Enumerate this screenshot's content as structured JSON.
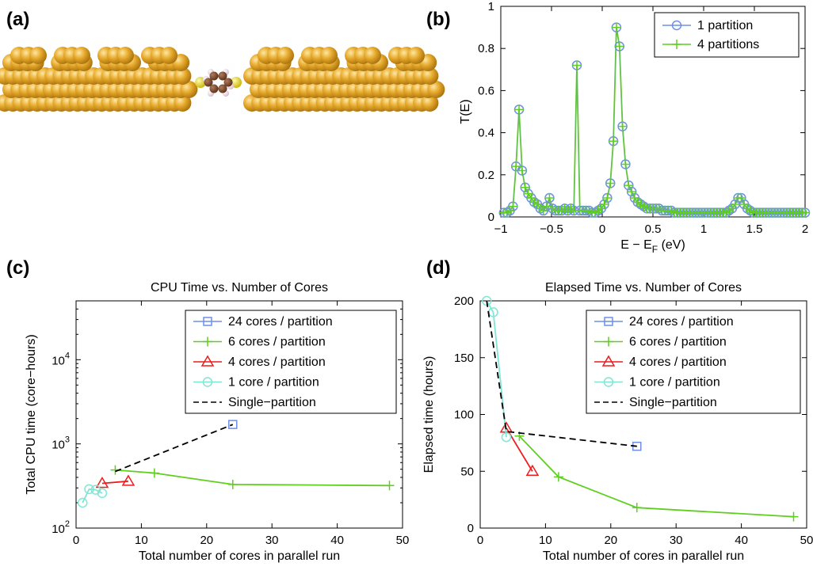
{
  "panel_labels": [
    "(a)",
    "(b)",
    "(c)",
    "(d)"
  ],
  "colors": {
    "blue": "#6e8fe6",
    "green": "#5fcf1f",
    "red": "#ee1c1c",
    "cyan": "#7fe6d5",
    "black": "#000000",
    "gold": "#e3a21c",
    "sulfur": "#f2de16",
    "carbon": "#7a4a2c",
    "hydrogen": "#f3d6e6"
  },
  "chart_data": [
    {
      "id": "b",
      "type": "line",
      "title": "",
      "xlabel": "E − E",
      "xlabel_sub": "F",
      "xlabel_suffix": " (eV)",
      "ylabel": "T(E)",
      "xlim": [
        -1,
        2
      ],
      "ylim": [
        0,
        1
      ],
      "xticks": [
        -1,
        -0.5,
        0,
        0.5,
        1,
        1.5,
        2
      ],
      "xtick_labels": [
        "−1",
        "−0.5",
        "0",
        "0.5",
        "1",
        "1.5",
        "2"
      ],
      "yticks": [
        0,
        0.2,
        0.4,
        0.6,
        0.8,
        1
      ],
      "ytick_labels": [
        "0",
        "0.2",
        "0.4",
        "0.6",
        "0.8",
        "1"
      ],
      "legend_position": "top-right",
      "series": [
        {
          "name": "1 partition",
          "color": "blue",
          "marker": "circle",
          "line": true
        },
        {
          "name": "4 partitions",
          "color": "green",
          "marker": "plus",
          "line": true
        }
      ],
      "x": [
        -0.97,
        -0.94,
        -0.91,
        -0.88,
        -0.85,
        -0.82,
        -0.79,
        -0.76,
        -0.73,
        -0.7,
        -0.67,
        -0.64,
        -0.61,
        -0.58,
        -0.55,
        -0.52,
        -0.49,
        -0.46,
        -0.43,
        -0.4,
        -0.37,
        -0.34,
        -0.31,
        -0.28,
        -0.25,
        -0.22,
        -0.19,
        -0.16,
        -0.13,
        -0.1,
        -0.07,
        -0.04,
        -0.01,
        0.02,
        0.05,
        0.08,
        0.11,
        0.14,
        0.17,
        0.2,
        0.23,
        0.26,
        0.29,
        0.32,
        0.35,
        0.38,
        0.41,
        0.44,
        0.47,
        0.5,
        0.53,
        0.56,
        0.59,
        0.62,
        0.65,
        0.68,
        0.71,
        0.74,
        0.77,
        0.8,
        0.83,
        0.86,
        0.89,
        0.92,
        0.95,
        0.98,
        1.01,
        1.04,
        1.07,
        1.1,
        1.13,
        1.16,
        1.19,
        1.22,
        1.25,
        1.28,
        1.31,
        1.34,
        1.37,
        1.4,
        1.43,
        1.46,
        1.49,
        1.52,
        1.55,
        1.58,
        1.61,
        1.64,
        1.67,
        1.7,
        1.73,
        1.76,
        1.79,
        1.82,
        1.85,
        1.88,
        1.91,
        1.94,
        1.97,
        2.0
      ],
      "y": [
        0.02,
        0.02,
        0.03,
        0.05,
        0.24,
        0.51,
        0.22,
        0.14,
        0.11,
        0.09,
        0.07,
        0.06,
        0.04,
        0.03,
        0.05,
        0.09,
        0.04,
        0.03,
        0.03,
        0.03,
        0.04,
        0.03,
        0.04,
        0.03,
        0.72,
        0.03,
        0.03,
        0.03,
        0.03,
        0.02,
        0.02,
        0.03,
        0.04,
        0.06,
        0.09,
        0.16,
        0.36,
        0.9,
        0.81,
        0.43,
        0.25,
        0.15,
        0.12,
        0.09,
        0.07,
        0.06,
        0.05,
        0.04,
        0.04,
        0.04,
        0.04,
        0.04,
        0.03,
        0.03,
        0.03,
        0.03,
        0.02,
        0.02,
        0.02,
        0.02,
        0.02,
        0.02,
        0.02,
        0.02,
        0.02,
        0.02,
        0.02,
        0.02,
        0.02,
        0.02,
        0.02,
        0.02,
        0.02,
        0.02,
        0.03,
        0.04,
        0.06,
        0.09,
        0.09,
        0.06,
        0.04,
        0.03,
        0.02,
        0.02,
        0.02,
        0.02,
        0.02,
        0.02,
        0.02,
        0.02,
        0.02,
        0.02,
        0.02,
        0.02,
        0.02,
        0.02,
        0.02,
        0.02,
        0.02,
        0.02
      ]
    },
    {
      "id": "c",
      "type": "line",
      "title": "CPU Time vs. Number of Cores",
      "xlabel": "Total number of cores in parallel run",
      "ylabel": "Total CPU time (core−hours)",
      "xlim": [
        0,
        50
      ],
      "yscale": "log",
      "ylim": [
        100,
        50000
      ],
      "xticks": [
        0,
        10,
        20,
        30,
        40,
        50
      ],
      "yticks": [
        100,
        1000,
        10000
      ],
      "ytick_labels": [
        [
          "10",
          "2"
        ],
        [
          "10",
          "3"
        ],
        [
          "10",
          "4"
        ]
      ],
      "legend_position": "top-right",
      "series": [
        {
          "name": "24 cores / partition",
          "color": "blue",
          "marker": "square",
          "line": false,
          "x": [
            24
          ],
          "y": [
            1700
          ]
        },
        {
          "name": "6 cores / partition",
          "color": "green",
          "marker": "plus",
          "line": true,
          "x": [
            6,
            12,
            24,
            48
          ],
          "y": [
            490,
            450,
            330,
            320
          ]
        },
        {
          "name": "4 cores / partition",
          "color": "red",
          "marker": "triangle",
          "line": true,
          "x": [
            4,
            8
          ],
          "y": [
            340,
            360
          ]
        },
        {
          "name": "1 core / partition",
          "color": "cyan",
          "marker": "circle",
          "line": true,
          "x": [
            1,
            2,
            3,
            4
          ],
          "y": [
            200,
            290,
            285,
            260
          ]
        },
        {
          "name": "Single−partition",
          "color": "black",
          "marker": "none",
          "line": "dashed",
          "x": [
            6,
            24
          ],
          "y": [
            470,
            1700
          ]
        }
      ]
    },
    {
      "id": "d",
      "type": "line",
      "title": "Elapsed Time vs. Number of Cores",
      "xlabel": "Total number of cores in parallel run",
      "ylabel": "Elapsed time (hours)",
      "xlim": [
        0,
        50
      ],
      "ylim": [
        0,
        200
      ],
      "xticks": [
        0,
        10,
        20,
        30,
        40,
        50
      ],
      "yticks": [
        0,
        50,
        100,
        150,
        200
      ],
      "legend_position": "top-right",
      "series": [
        {
          "name": "24 cores / partition",
          "color": "blue",
          "marker": "square",
          "line": false,
          "x": [
            24
          ],
          "y": [
            72
          ]
        },
        {
          "name": "6 cores / partition",
          "color": "green",
          "marker": "plus",
          "line": true,
          "x": [
            6,
            12,
            24,
            48
          ],
          "y": [
            81,
            45,
            18,
            10
          ]
        },
        {
          "name": "4 cores / partition",
          "color": "red",
          "marker": "triangle",
          "line": true,
          "x": [
            4,
            8
          ],
          "y": [
            88,
            50
          ]
        },
        {
          "name": "1 core / partition",
          "color": "cyan",
          "marker": "circle",
          "line": true,
          "x": [
            1,
            2,
            4
          ],
          "y": [
            200,
            190,
            80
          ]
        },
        {
          "name": "Single−partition",
          "color": "black",
          "marker": "none",
          "line": "dashed",
          "x": [
            1,
            4,
            24
          ],
          "y": [
            200,
            85,
            72
          ]
        }
      ]
    }
  ]
}
